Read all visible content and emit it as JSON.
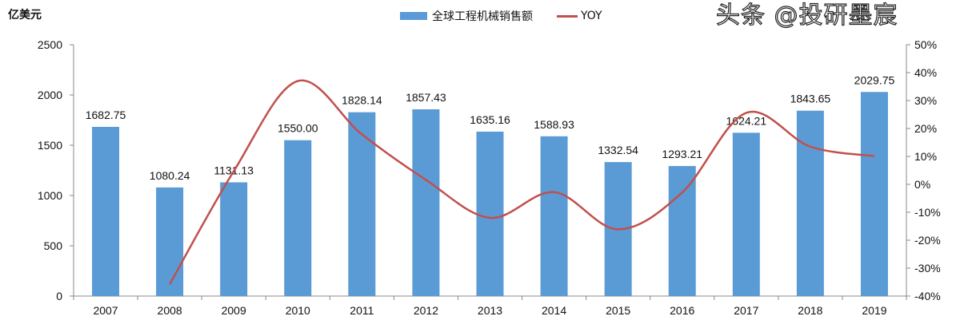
{
  "chart_data": {
    "type": "bar",
    "title": "",
    "y_unit_label": "亿美元",
    "categories": [
      "2007",
      "2008",
      "2009",
      "2010",
      "2011",
      "2012",
      "2013",
      "2014",
      "2015",
      "2016",
      "2017",
      "2018",
      "2019"
    ],
    "series": [
      {
        "name": "全球工程机械销售额",
        "type": "bar",
        "axis": "left",
        "color": "#5b9bd5",
        "values": [
          1682.75,
          1080.24,
          1131.13,
          1550.0,
          1828.14,
          1857.43,
          1635.16,
          1588.93,
          1332.54,
          1293.21,
          1624.21,
          1843.65,
          2029.75
        ],
        "labels": [
          "1682.75",
          "1080.24",
          "1131.13",
          "1550.00",
          "1828.14",
          "1857.43",
          "1635.16",
          "1588.93",
          "1332.54",
          "1293.21",
          "1624.21",
          "1843.65",
          "2029.75"
        ]
      },
      {
        "name": "YOY",
        "type": "line",
        "axis": "right",
        "color": "#c0504d",
        "smooth": true,
        "values": [
          null,
          -35.8,
          4.7,
          37.0,
          17.9,
          1.6,
          -12.0,
          -2.8,
          -16.1,
          -2.9,
          25.6,
          13.5,
          10.1
        ]
      }
    ],
    "y_left": {
      "min": 0,
      "max": 2500,
      "ticks": [
        "0",
        "500",
        "1000",
        "1500",
        "2000",
        "2500"
      ]
    },
    "y_right": {
      "min": -40,
      "max": 50,
      "ticks": [
        "-40%",
        "-30%",
        "-20%",
        "-10%",
        "0%",
        "10%",
        "20%",
        "30%",
        "40%",
        "50%"
      ]
    },
    "legend": "top",
    "grid": false
  },
  "watermark": "头条 @投研墨宸"
}
